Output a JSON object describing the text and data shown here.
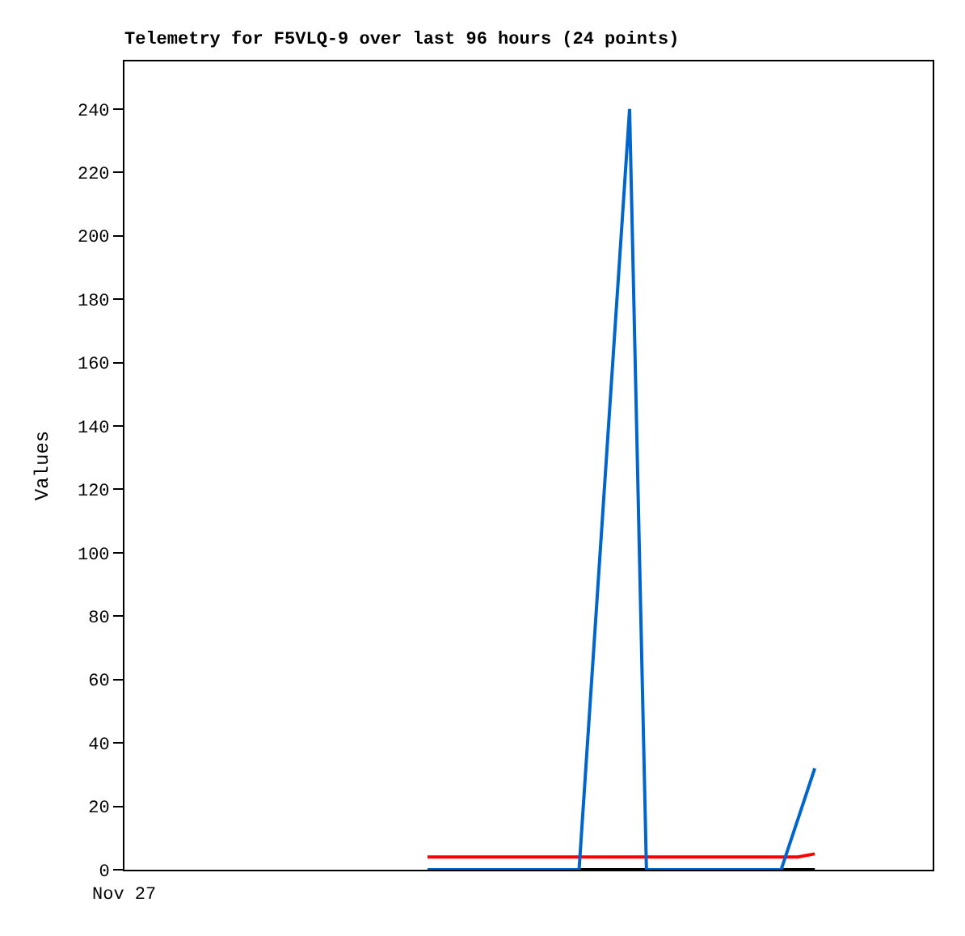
{
  "chart_data": {
    "type": "line",
    "title": "Telemetry for F5VLQ-9 over last 96 hours (24 points)",
    "ylabel": "Values",
    "categories": [
      null,
      null,
      null,
      null,
      null,
      null,
      null,
      null,
      null,
      null,
      null,
      null,
      null,
      null,
      null,
      null,
      null,
      null,
      null,
      null,
      null,
      null,
      null,
      null,
      null,
      null,
      null,
      null,
      null,
      null,
      null,
      null,
      null,
      null,
      null,
      null,
      null,
      null,
      null,
      null,
      null,
      null,
      null,
      null,
      null,
      null,
      null,
      null,
      null
    ],
    "tick_labels": "y",
    "annotations": [
      "Nov 27"
    ],
    "ylim": [
      0,
      255
    ],
    "yticks": [
      0,
      20,
      40,
      60,
      80,
      100,
      120,
      140,
      160,
      180,
      200,
      220,
      240
    ],
    "marker": "none",
    "line_style": "solid",
    "series": [
      {
        "color": "#000000",
        "values": [
          null,
          null,
          null,
          null,
          null,
          null,
          null,
          null,
          null,
          null,
          null,
          null,
          null,
          null,
          null,
          null,
          null,
          null,
          0,
          0,
          0,
          0,
          0,
          0,
          0,
          0,
          0,
          0,
          0,
          0,
          0,
          0,
          0,
          0,
          0,
          0,
          0,
          0,
          0,
          0,
          0,
          0,
          null,
          null,
          null,
          null,
          null,
          null,
          null
        ]
      },
      {
        "color": "#ff0000",
        "values": [
          null,
          null,
          null,
          null,
          null,
          null,
          null,
          null,
          null,
          null,
          null,
          null,
          null,
          null,
          null,
          null,
          null,
          null,
          4,
          4,
          4,
          4,
          4,
          4,
          4,
          4,
          4,
          4,
          4,
          4,
          4,
          4,
          4,
          4,
          4,
          4,
          4,
          4,
          4,
          4,
          4,
          5,
          null,
          null,
          null,
          null,
          null,
          null,
          null
        ]
      },
      {
        "color": "#0066cc",
        "values": [
          null,
          null,
          null,
          null,
          null,
          null,
          null,
          null,
          null,
          null,
          null,
          null,
          null,
          null,
          null,
          null,
          null,
          null,
          0,
          0,
          0,
          0,
          0,
          0,
          0,
          0,
          0,
          0,
          80,
          160,
          240,
          0,
          0,
          0,
          0,
          0,
          0,
          0,
          0,
          0,
          16,
          32,
          null,
          null,
          null,
          null,
          null,
          null,
          null
        ]
      }
    ]
  }
}
